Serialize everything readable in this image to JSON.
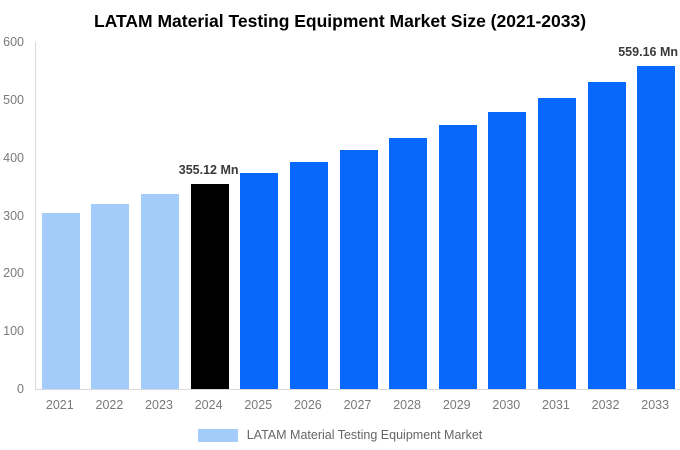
{
  "title": {
    "text": "LATAM Material Testing Equipment Market Size (2021-2033)"
  },
  "legend": {
    "items": [
      {
        "label": "LATAM Material Testing Equipment Market",
        "swatch_color": "#a4ccfa"
      }
    ]
  },
  "colors": {
    "historical_bar": "#a4ccfa",
    "base_year_bar": "#000000",
    "forecast_bar": "#0768fb",
    "axis_text": "#7a7a7a",
    "annotation_text": "#3a3a3a",
    "axis_line": "#d9d9d9",
    "title_text": "#000000",
    "legend_text": "#666666"
  },
  "chart_data": {
    "type": "bar",
    "title": "LATAM Material Testing Equipment Market Size (2021-2033)",
    "value_unit": "Mn",
    "categories": [
      "2021",
      "2022",
      "2023",
      "2024",
      "2025",
      "2026",
      "2027",
      "2028",
      "2029",
      "2030",
      "2031",
      "2032",
      "2033"
    ],
    "values": [
      304,
      320,
      337,
      355.12,
      374,
      393,
      413,
      434,
      456,
      479,
      504,
      531,
      559.16
    ],
    "bar_roles": [
      "historical",
      "historical",
      "historical",
      "base_year",
      "forecast",
      "forecast",
      "forecast",
      "forecast",
      "forecast",
      "forecast",
      "forecast",
      "forecast",
      "forecast"
    ],
    "annotations": [
      {
        "category": "2024",
        "text": "355.12 Mn"
      },
      {
        "category": "2033",
        "text": "559.16 Mn"
      }
    ],
    "xlabel": "",
    "ylabel": "",
    "ylim": [
      0,
      600
    ],
    "yticks": [
      0,
      100,
      200,
      300,
      400,
      500,
      600
    ],
    "grid": false,
    "legend_position": "bottom",
    "legend_entries": [
      "LATAM Material Testing Equipment Market"
    ]
  }
}
